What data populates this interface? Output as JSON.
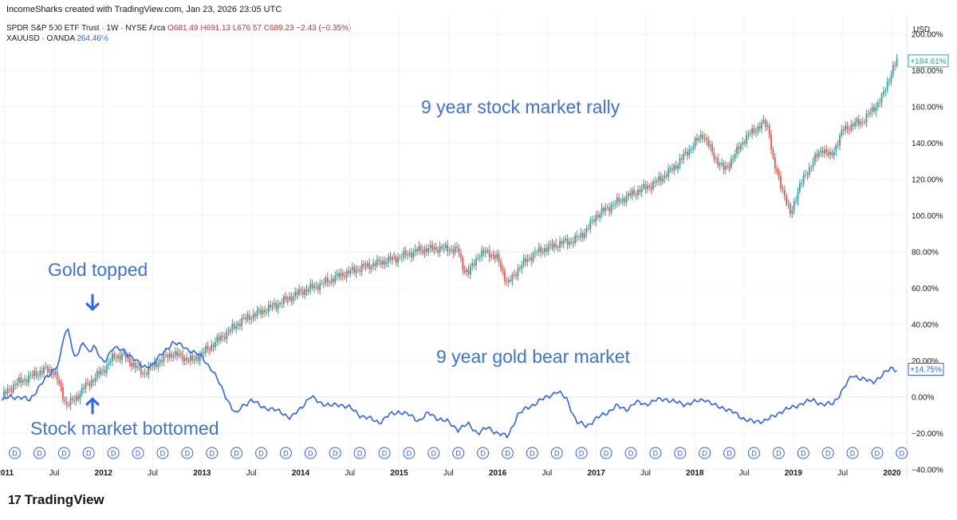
{
  "header": {
    "credit": "IncomeSharks created with TradingView.com, Jan 23, 2026 23:05 UTC",
    "symbol": "SPDR S&P 500 ETF Trust · 1W · NYSE Arca",
    "open": "O681.49",
    "high": "H691.13",
    "low": "L676.57",
    "close": "C689.23",
    "change": "−2.43 (−0.35%)",
    "compare_symbol": "XAUUSD · OANDA",
    "compare_value": "264.46%"
  },
  "annotations": {
    "rally": "9 year stock market rally",
    "bear": "9 year gold bear market",
    "gold_top": "Gold topped",
    "stock_bottom": "Stock market bottomed"
  },
  "logo": {
    "mark": "17",
    "text": "TradingView"
  },
  "colors": {
    "up": "#26a69a",
    "down": "#ef5350",
    "gold_line": "#2962ff",
    "annotation": "#3e72d8",
    "zero_line": "#b2b5be"
  },
  "chart_data": {
    "type": "line",
    "title": "SPDR S&P 500 ETF Trust vs XAUUSD, weekly, percent change",
    "currency": "USD",
    "ylim": [
      -45,
      210
    ],
    "y_ticks": [
      -40,
      -20,
      0,
      20,
      40,
      60,
      80,
      100,
      120,
      140,
      160,
      180,
      200
    ],
    "y_tick_labels": [
      "−40.00%",
      "−20.00%",
      "0.00%",
      "20.00%",
      "40.00%",
      "60.00%",
      "80.00%",
      "100.00%",
      "120.00%",
      "140.00%",
      "160.00%",
      "180.00%",
      "200.00%"
    ],
    "xlim": [
      2010.95,
      2020.15
    ],
    "x_ticks": [
      2011.0,
      2011.5,
      2012.0,
      2012.5,
      2013.0,
      2013.5,
      2014.0,
      2014.5,
      2015.0,
      2015.5,
      2016.0,
      2016.5,
      2017.0,
      2017.5,
      2018.0,
      2018.5,
      2019.0,
      2019.5,
      2020.0
    ],
    "x_tick_labels": [
      "2011",
      "Jul",
      "2012",
      "Jul",
      "2013",
      "Jul",
      "2014",
      "Jul",
      "2015",
      "Jul",
      "2016",
      "Jul",
      "2017",
      "Jul",
      "2018",
      "Jul",
      "2019",
      "Jul",
      "2020"
    ],
    "dividend_markers": [
      2011.1,
      2011.35,
      2011.6,
      2011.85,
      2012.1,
      2012.35,
      2012.6,
      2012.85,
      2013.1,
      2013.35,
      2013.6,
      2013.85,
      2014.1,
      2014.35,
      2014.6,
      2014.85,
      2015.1,
      2015.35,
      2015.6,
      2015.85,
      2016.1,
      2016.35,
      2016.6,
      2016.85,
      2017.1,
      2017.35,
      2017.6,
      2017.85,
      2018.1,
      2018.35,
      2018.6,
      2018.85,
      2019.1,
      2019.35,
      2019.6,
      2019.85,
      2020.1
    ],
    "dividend_marker_label": "D",
    "series": [
      {
        "name": "SPDR S&P 500 ETF Trust",
        "style": "candles",
        "last_label": "+184.61%",
        "x": [
          2010.97,
          2011.1,
          2011.25,
          2011.4,
          2011.5,
          2011.58,
          2011.62,
          2011.7,
          2011.8,
          2011.9,
          2012.0,
          2012.1,
          2012.2,
          2012.3,
          2012.4,
          2012.5,
          2012.6,
          2012.7,
          2012.8,
          2012.9,
          2013.0,
          2013.2,
          2013.4,
          2013.6,
          2013.8,
          2014.0,
          2014.2,
          2014.4,
          2014.6,
          2014.8,
          2015.0,
          2015.2,
          2015.4,
          2015.6,
          2015.64,
          2015.7,
          2015.8,
          2015.9,
          2016.0,
          2016.1,
          2016.2,
          2016.3,
          2016.4,
          2016.6,
          2016.8,
          2016.9,
          2017.0,
          2017.2,
          2017.4,
          2017.6,
          2017.8,
          2018.0,
          2018.08,
          2018.2,
          2018.3,
          2018.4,
          2018.5,
          2018.6,
          2018.7,
          2018.75,
          2018.8,
          2018.9,
          2018.97,
          2019.05,
          2019.2,
          2019.3,
          2019.38,
          2019.5,
          2019.6,
          2019.7,
          2019.8,
          2019.9,
          2020.0,
          2020.05
        ],
        "y": [
          0,
          7,
          11,
          15,
          14,
          2,
          -4,
          -2,
          5,
          10,
          15,
          22,
          23,
          18,
          13,
          17,
          21,
          24,
          22,
          20,
          24,
          33,
          42,
          47,
          52,
          58,
          62,
          67,
          71,
          74,
          77,
          81,
          82,
          81,
          72,
          68,
          78,
          80,
          76,
          62,
          70,
          76,
          80,
          84,
          87,
          92,
          100,
          107,
          113,
          118,
          127,
          140,
          145,
          132,
          125,
          133,
          142,
          147,
          151,
          148,
          128,
          113,
          100,
          115,
          130,
          137,
          132,
          147,
          150,
          152,
          158,
          165,
          180,
          185
        ]
      },
      {
        "name": "XAUUSD · OANDA",
        "style": "line",
        "last_label": "+14.75%",
        "x": [
          2010.97,
          2011.05,
          2011.15,
          2011.25,
          2011.35,
          2011.45,
          2011.55,
          2011.6,
          2011.65,
          2011.7,
          2011.75,
          2011.8,
          2011.85,
          2011.9,
          2012.0,
          2012.1,
          2012.2,
          2012.3,
          2012.4,
          2012.5,
          2012.6,
          2012.7,
          2012.8,
          2012.9,
          2013.0,
          2013.1,
          2013.2,
          2013.3,
          2013.35,
          2013.4,
          2013.5,
          2013.6,
          2013.7,
          2013.8,
          2013.9,
          2014.0,
          2014.1,
          2014.2,
          2014.3,
          2014.4,
          2014.5,
          2014.6,
          2014.7,
          2014.8,
          2014.9,
          2015.0,
          2015.1,
          2015.2,
          2015.3,
          2015.4,
          2015.5,
          2015.6,
          2015.7,
          2015.8,
          2015.9,
          2016.0,
          2016.1,
          2016.2,
          2016.3,
          2016.4,
          2016.5,
          2016.6,
          2016.7,
          2016.8,
          2016.9,
          2017.0,
          2017.1,
          2017.2,
          2017.3,
          2017.4,
          2017.5,
          2017.6,
          2017.7,
          2017.8,
          2017.9,
          2018.0,
          2018.1,
          2018.2,
          2018.3,
          2018.4,
          2018.5,
          2018.6,
          2018.7,
          2018.8,
          2018.9,
          2019.0,
          2019.1,
          2019.2,
          2019.3,
          2019.4,
          2019.5,
          2019.6,
          2019.7,
          2019.8,
          2019.9,
          2020.0,
          2020.05
        ],
        "y": [
          -2,
          0,
          0,
          -2,
          6,
          12,
          19,
          34,
          37,
          22,
          25,
          30,
          24,
          29,
          18,
          28,
          25,
          22,
          16,
          18,
          24,
          30,
          28,
          25,
          22,
          15,
          5,
          -6,
          -10,
          -5,
          -2,
          -5,
          -7,
          -8,
          -12,
          -6,
          0,
          -3,
          -5,
          -4,
          -6,
          -10,
          -12,
          -14,
          -10,
          -8,
          -10,
          -13,
          -9,
          -12,
          -14,
          -18,
          -15,
          -20,
          -17,
          -20,
          -22,
          -10,
          -6,
          -3,
          0,
          3,
          -1,
          -14,
          -16,
          -12,
          -9,
          -5,
          -7,
          -3,
          -4,
          -2,
          -1,
          -3,
          -4,
          -3,
          -1,
          -5,
          -6,
          -9,
          -12,
          -14,
          -13,
          -11,
          -7,
          -6,
          -3,
          -2,
          -4,
          -4,
          4,
          12,
          10,
          8,
          12,
          16,
          15
        ]
      }
    ]
  }
}
